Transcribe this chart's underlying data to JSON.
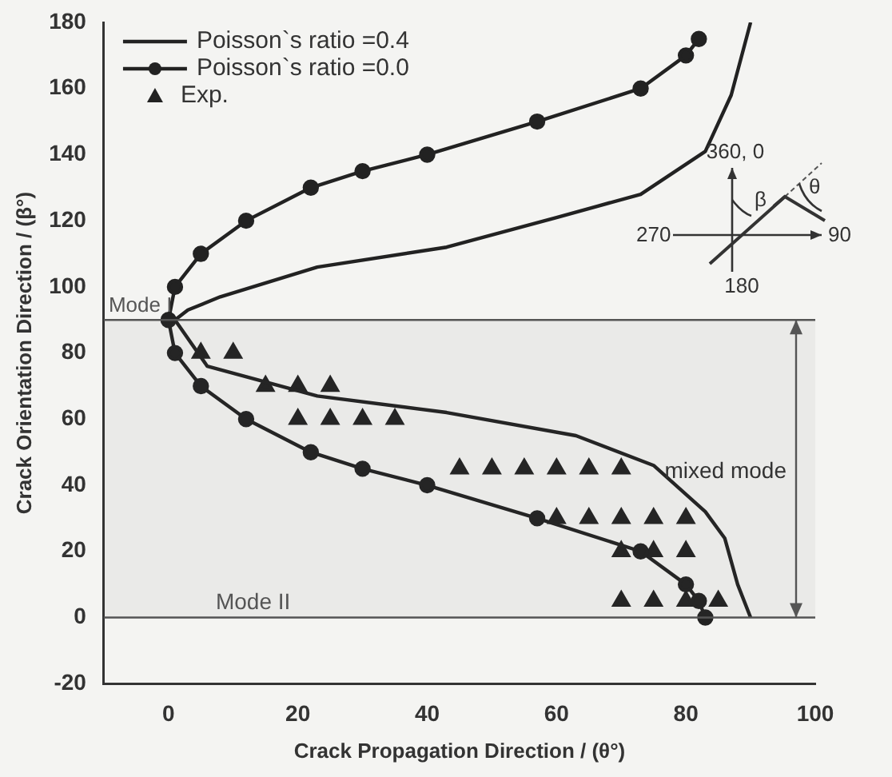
{
  "chart_data": {
    "type": "line",
    "xlabel": "Crack Propagation Direction / (θ°)",
    "ylabel": "Crack Orientation Direction / (β°)",
    "xlim": [
      -10,
      100
    ],
    "xticks": [
      0,
      20,
      40,
      60,
      80,
      100
    ],
    "ylim": [
      -20,
      180
    ],
    "yticks": [
      -20,
      0,
      20,
      40,
      60,
      80,
      100,
      120,
      140,
      160,
      180
    ],
    "grid": false,
    "legend": "top left",
    "series": [
      {
        "name": "Poisson`s ratio =0.4",
        "type": "line",
        "marker": "none",
        "color": "#222222",
        "x": [
          90,
          87,
          83,
          73,
          60,
          43,
          23,
          8,
          3,
          1,
          6,
          23,
          43,
          63,
          75,
          83,
          86,
          88,
          90
        ],
        "values": [
          180,
          158,
          141,
          128,
          121,
          112,
          106,
          97,
          93,
          90,
          76,
          67,
          62,
          55,
          46,
          32,
          24,
          10,
          0
        ]
      },
      {
        "name": "Poisson`s ratio =0.0",
        "type": "line",
        "marker": "circle",
        "color": "#222222",
        "x": [
          82,
          80,
          73,
          57,
          40,
          30,
          22,
          12,
          5,
          1,
          0,
          1,
          5,
          12,
          22,
          30,
          40,
          57,
          73,
          80,
          82,
          83
        ],
        "values": [
          175,
          170,
          160,
          150,
          140,
          135,
          130,
          120,
          110,
          100,
          90,
          80,
          70,
          60,
          50,
          45,
          40,
          30,
          20,
          10,
          5,
          0
        ]
      },
      {
        "name": "Exp.",
        "type": "scatter",
        "marker": "triangle",
        "color": "#222222",
        "x": [
          5,
          10,
          15,
          20,
          25,
          20,
          25,
          30,
          35,
          45,
          50,
          55,
          60,
          65,
          70,
          60,
          65,
          70,
          75,
          80,
          70,
          75,
          80,
          70,
          75,
          80,
          85
        ],
        "values": [
          80,
          80,
          70,
          70,
          70,
          60,
          60,
          60,
          60,
          45,
          45,
          45,
          45,
          45,
          45,
          30,
          30,
          30,
          30,
          30,
          20,
          20,
          20,
          5,
          5,
          5,
          5
        ]
      }
    ],
    "ref_lines": [
      {
        "axis": "y",
        "value": 90,
        "label": "Mode I",
        "color": "#555555"
      },
      {
        "axis": "y",
        "value": 0,
        "label": "Mode II",
        "color": "#555555"
      }
    ],
    "bands": [
      {
        "axis": "y",
        "from": 0,
        "to": 90,
        "label": "mixed mode",
        "color": "#555555"
      }
    ],
    "annotations": [
      "360, 0",
      "90",
      "180",
      "270",
      "β",
      "θ"
    ]
  }
}
